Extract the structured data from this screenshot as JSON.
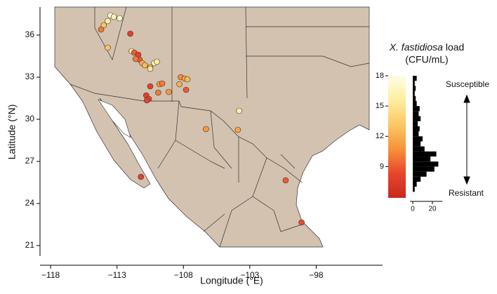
{
  "chart_data": {
    "type": "scatter",
    "xlabel": "Longitude (°E)",
    "ylabel": "Latitude (°N)",
    "xlim": [
      -118.8,
      -93.0
    ],
    "ylim": [
      20.25,
      38.0
    ],
    "xticks": [
      {
        "value": -118,
        "label": "−118"
      },
      {
        "value": -113,
        "label": "−113"
      },
      {
        "value": -108,
        "label": "−108"
      },
      {
        "value": -103,
        "label": "−103"
      },
      {
        "value": -98,
        "label": "−98"
      }
    ],
    "yticks": [
      21,
      24,
      27,
      30,
      33,
      36
    ],
    "series": [
      {
        "x": [
          -113.5,
          -113.24,
          -112.8,
          -113.7,
          -114.0,
          -114.2,
          -113.7,
          -112.0,
          -111.9,
          -111.7,
          -111.4,
          -111.3,
          -111.6,
          -111.1,
          -110.9,
          -110.5,
          -110.5,
          -110.2,
          -110.0,
          -108.2,
          -107.9,
          -107.7,
          -108.3,
          -107.8,
          -110.5,
          -109.8,
          -109.6,
          -109.1,
          -109.9,
          -110.8,
          -110.6,
          -110.75,
          -103.8,
          -106.3,
          -103.9,
          -111.2,
          -100.3,
          -99.1
        ],
        "y": [
          37.4,
          37.3,
          37.2,
          37.0,
          36.7,
          36.4,
          35.1,
          36.1,
          34.85,
          34.75,
          34.6,
          34.25,
          34.3,
          34.0,
          33.85,
          33.7,
          33.6,
          34.0,
          34.1,
          33.0,
          32.9,
          32.85,
          32.5,
          32.1,
          32.35,
          32.5,
          32.55,
          31.95,
          31.9,
          31.7,
          31.45,
          31.35,
          30.6,
          29.3,
          29.25,
          25.9,
          25.65,
          22.65
        ],
        "values": [
          17.5,
          16.5,
          17,
          15.5,
          13,
          10,
          13,
          8,
          15,
          9,
          8,
          9,
          10,
          12,
          12.5,
          13,
          15,
          16,
          15.5,
          10.5,
          11.5,
          12.5,
          12,
          9,
          8,
          11,
          10,
          11,
          10,
          8,
          8.5,
          8,
          16,
          11,
          11.5,
          8,
          9,
          8.5
        ]
      }
    ],
    "colorbar": {
      "title_italic": "X. fastidiosa",
      "title_rest": "load",
      "title_unit": "(CFU/mL)",
      "clim": [
        5.9,
        18
      ],
      "ticks": [
        9,
        12,
        15,
        18
      ],
      "colormap": [
        "#c62a1e",
        "#e8452c",
        "#f7923a",
        "#fbc865",
        "#fdeea0",
        "#fffde6"
      ],
      "top_label": "Susceptible",
      "bottom_label": "Resistant"
    },
    "histogram": {
      "bins": [
        6.5,
        7,
        7.5,
        8,
        8.5,
        9,
        9.5,
        10,
        10.5,
        11,
        11.5,
        12,
        12.5,
        13,
        13.5,
        14,
        14.5,
        15,
        15.5,
        16,
        16.5,
        17,
        17.5,
        18
      ],
      "counts": [
        2,
        4,
        8,
        14,
        22,
        26,
        18,
        24,
        12,
        8,
        10,
        6,
        7,
        5,
        8,
        6,
        7,
        4,
        3,
        2,
        3,
        2,
        4
      ],
      "xlim": [
        0,
        30
      ],
      "xticks": [
        0,
        20
      ],
      "color": "#000000"
    }
  }
}
